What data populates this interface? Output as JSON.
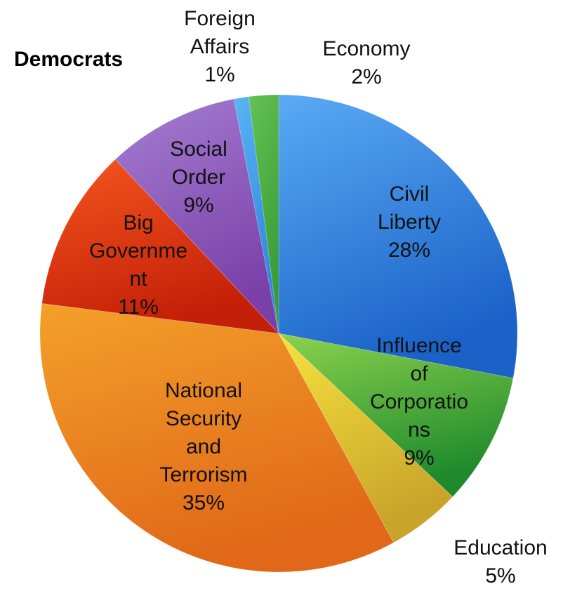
{
  "chart_data": {
    "type": "pie",
    "title": "Democrats",
    "start_angle_deg": 0,
    "direction": "clockwise",
    "slices": [
      {
        "label": "Civil Liberty",
        "value": 28,
        "pct_label": "28%",
        "color_light": "#5aaaf4",
        "color_dark": "#1a62c8"
      },
      {
        "label": "Influence of Corporations",
        "value": 9,
        "pct_label": "9%",
        "color_light": "#8cd24e",
        "color_dark": "#1e8a2c"
      },
      {
        "label": "Education",
        "value": 5,
        "pct_label": "5%",
        "color_light": "#f6e23e",
        "color_dark": "#c9a42a"
      },
      {
        "label": "National Security and Terrorism",
        "value": 35,
        "pct_label": "35%",
        "color_light": "#f4a02a",
        "color_dark": "#e06818"
      },
      {
        "label": "Big Government",
        "value": 11,
        "pct_label": "11%",
        "color_light": "#f4561e",
        "color_dark": "#c41f08"
      },
      {
        "label": "Social Order",
        "value": 9,
        "pct_label": "9%",
        "color_light": "#a57ed2",
        "color_dark": "#7a40a8"
      },
      {
        "label": "Foreign Affairs",
        "value": 1,
        "pct_label": "1%",
        "color_light": "#5ab4f4",
        "color_dark": "#2c86e0"
      },
      {
        "label": "Economy",
        "value": 2,
        "pct_label": "2%",
        "color_light": "#64c252",
        "color_dark": "#3a9a3a"
      }
    ],
    "label_lines": [
      {
        "slice": "civil-liberty",
        "lines": [
          "Civil",
          "Liberty",
          "28%"
        ]
      },
      {
        "slice": "influence-of-corporations",
        "lines": [
          "Influence",
          "of",
          "Corporatio",
          "ns",
          "9%"
        ]
      },
      {
        "slice": "education",
        "lines": [
          "Education",
          "5%"
        ]
      },
      {
        "slice": "national-security-and-terrorism",
        "lines": [
          "National",
          "Security",
          "and",
          "Terrorism",
          "35%"
        ]
      },
      {
        "slice": "big-government",
        "lines": [
          "Big",
          "Governme",
          "nt",
          "11%"
        ]
      },
      {
        "slice": "social-order",
        "lines": [
          "Social",
          "Order",
          "9%"
        ]
      },
      {
        "slice": "foreign-affairs",
        "lines": [
          "Foreign",
          "Affairs",
          "1%"
        ]
      },
      {
        "slice": "economy",
        "lines": [
          "Economy",
          "2%"
        ]
      }
    ]
  }
}
